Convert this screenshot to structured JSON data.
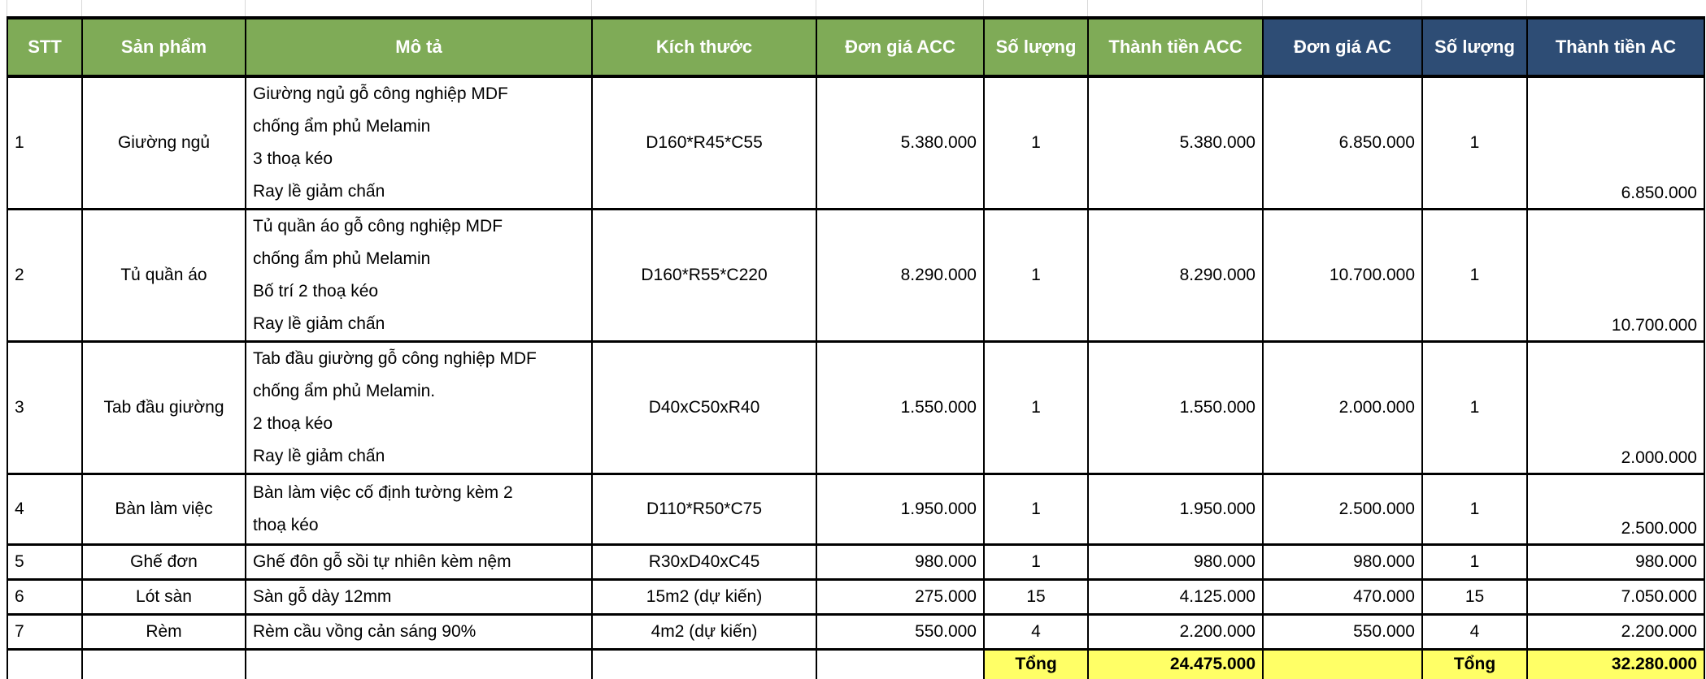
{
  "colors": {
    "header_green": "#7fab57",
    "header_blue": "#2e4d75",
    "total_highlight": "#ffff66"
  },
  "headers": [
    "STT",
    "Sản phẩm",
    "Mô tả",
    "Kích thước",
    "Đơn giá ACC",
    "Số lượng",
    "Thành tiền ACC",
    "Đơn giá AC",
    "Số lượng",
    "Thành tiền AC"
  ],
  "rows": [
    {
      "stt": "1",
      "product": "Giường ngủ",
      "desc": [
        "Giường ngủ gỗ công nghiệp MDF",
        "chống ẩm phủ Melamin",
        " 3 thoạ kéo",
        "Ray lề giảm chấn"
      ],
      "size": "D160*R45*C55",
      "price_acc": "5.380.000",
      "qty_acc": "1",
      "total_acc": "5.380.000",
      "price_ac": "6.850.000",
      "qty_ac": "1",
      "total_ac": "6.850.000"
    },
    {
      "stt": "2",
      "product": "Tủ quần áo",
      "desc": [
        "Tủ quần áo gỗ công nghiệp MDF",
        "chống ẩm phủ Melamin",
        "Bố trí 2 thoạ kéo",
        "Ray lề giảm chấn"
      ],
      "size": "D160*R55*C220",
      "price_acc": "8.290.000",
      "qty_acc": "1",
      "total_acc": "8.290.000",
      "price_ac": "10.700.000",
      "qty_ac": "1",
      "total_ac": "10.700.000"
    },
    {
      "stt": "3",
      "product": "Tab đầu giường",
      "desc": [
        "Tab đầu giường gỗ công nghiệp MDF",
        "chống ẩm phủ Melamin.",
        "2 thoạ kéo",
        "Ray lề giảm chấn"
      ],
      "size": "D40xC50xR40",
      "price_acc": "1.550.000",
      "qty_acc": "1",
      "total_acc": "1.550.000",
      "price_ac": "2.000.000",
      "qty_ac": "1",
      "total_ac": "2.000.000"
    },
    {
      "stt": "4",
      "product": "Bàn làm việc",
      "desc": [
        "Bàn làm việc cố định tường kèm 2",
        "thoạ kéo"
      ],
      "size": "D110*R50*C75",
      "price_acc": "1.950.000",
      "qty_acc": "1",
      "total_acc": "1.950.000",
      "price_ac": "2.500.000",
      "qty_ac": "1",
      "total_ac": "2.500.000"
    },
    {
      "stt": "5",
      "product": "Ghế đơn",
      "desc": [
        "Ghế đôn gỗ sồi tự nhiên kèm nệm"
      ],
      "size": "R30xD40xC45",
      "price_acc": "980.000",
      "qty_acc": "1",
      "total_acc": "980.000",
      "price_ac": "980.000",
      "qty_ac": "1",
      "total_ac": "980.000"
    },
    {
      "stt": "6",
      "product": "Lót sàn",
      "desc": [
        "Sàn gỗ  dày 12mm"
      ],
      "size": "15m2 (dự kiến)",
      "price_acc": "275.000",
      "qty_acc": "15",
      "total_acc": "4.125.000",
      "price_ac": "470.000",
      "qty_ac": "15",
      "total_ac": "7.050.000"
    },
    {
      "stt": "7",
      "product": "Rèm",
      "desc": [
        "Rèm cầu vồng cản sáng 90%"
      ],
      "size": "4m2 (dự kiến)",
      "price_acc": "550.000",
      "qty_acc": "4",
      "total_acc": "2.200.000",
      "price_ac": "550.000",
      "qty_ac": "4",
      "total_ac": "2.200.000"
    }
  ],
  "totals": {
    "label_acc": "Tổng",
    "total_acc": "24.475.000",
    "label_ac": "Tổng",
    "total_ac": "32.280.000"
  }
}
